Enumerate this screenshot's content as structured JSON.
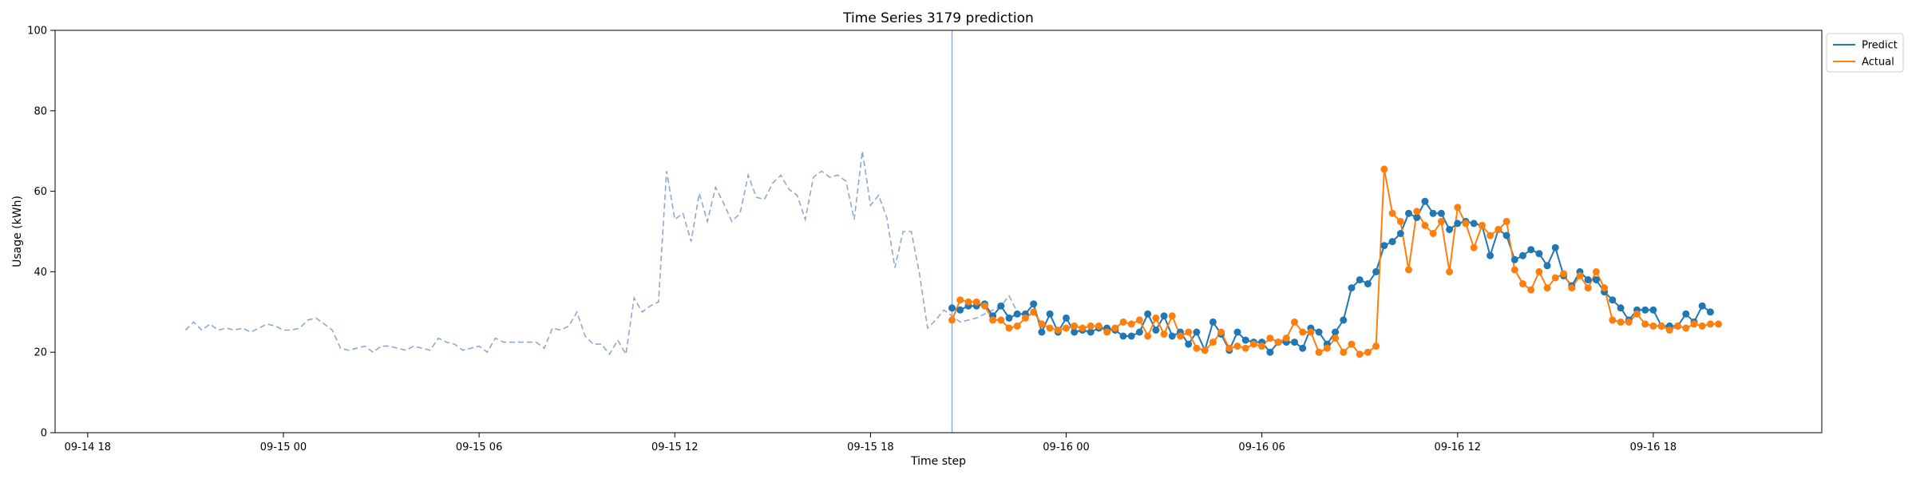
{
  "chart_data": {
    "type": "line",
    "title": "Time Series 3179 prediction",
    "xlabel": "Time step",
    "ylabel": "Usage (kWh)",
    "ylim": [
      0,
      100
    ],
    "yticks": [
      0,
      20,
      40,
      60,
      80,
      100
    ],
    "xlim": [
      "09-14 17:00",
      "09-16 23:10"
    ],
    "xticks": [
      "09-14 18",
      "09-15 00",
      "09-15 06",
      "09-15 12",
      "09-15 18",
      "09-16 00",
      "09-16 06",
      "09-16 12",
      "09-16 18"
    ],
    "grid": false,
    "legend_position": "top-right outside",
    "forecast_start": "09-15 20:30",
    "colors": {
      "history": "#8fa8d0",
      "predict": "#1f77b4",
      "actual": "#ff7f0e",
      "divider": "#8fa8d0"
    },
    "history": {
      "start": "09-14 21:00",
      "interval_minutes": 15,
      "values": [
        25.5,
        27.5,
        25.5,
        27,
        25.5,
        26,
        25.5,
        26,
        25,
        26,
        27,
        26.5,
        25.5,
        25.5,
        26,
        28,
        28.5,
        27,
        25.5,
        21,
        20.5,
        21,
        21.5,
        20,
        21.5,
        21.5,
        21,
        20.5,
        21.5,
        21,
        20.5,
        23.5,
        22.5,
        22,
        20.5,
        21,
        21.5,
        20,
        23.5,
        22.5,
        22.5,
        22.5,
        22.5,
        22.5,
        21,
        26,
        25.5,
        26.5,
        30,
        24,
        22,
        22,
        19.5,
        23,
        19.5,
        33.5,
        30,
        31.5,
        32.5,
        65,
        53,
        54.5,
        47.5,
        59.5,
        52.5,
        61,
        57,
        52.5,
        54.5,
        64,
        58.5,
        58,
        62,
        64,
        60.5,
        59,
        53,
        63.5,
        65,
        63.5,
        64,
        62.5,
        53,
        70,
        56.5,
        59,
        53.5,
        41,
        50,
        50,
        39.5,
        26,
        28,
        30.5,
        29,
        27.5,
        28,
        28.5,
        29.5,
        30.5,
        31.5,
        34,
        30
      ]
    },
    "forecast_x": {
      "start": "09-15 20:30",
      "interval_minutes": 15
    },
    "series": [
      {
        "name": "Predict",
        "values": [
          31,
          30.5,
          31.5,
          31.5,
          32,
          29,
          31.5,
          28.5,
          29.5,
          29.5,
          32,
          25,
          29.5,
          25,
          28.5,
          25,
          25.5,
          25,
          26,
          26,
          25.5,
          24,
          24,
          25,
          29.5,
          25.5,
          29,
          24,
          25,
          22,
          25,
          20.5,
          27.5,
          24.5,
          20.5,
          25,
          23,
          22.5,
          22.5,
          20,
          22.5,
          22.5,
          22.5,
          21,
          26,
          25,
          22,
          25,
          28,
          36,
          38,
          37,
          40,
          46.5,
          47.5,
          49.5,
          54.5,
          53.5,
          57.5,
          54.5,
          54.5,
          50.5,
          52,
          52.5,
          52,
          51.5,
          44,
          50.5,
          49,
          43,
          44,
          45.5,
          44.5,
          41.5,
          46,
          39,
          36.5,
          40,
          38,
          38,
          35,
          33,
          31,
          28,
          30.5,
          30.5,
          30.5,
          26.5,
          26.5,
          26.5,
          29.5,
          27.5,
          31.5,
          30
        ]
      },
      {
        "name": "Actual",
        "values": [
          28,
          33,
          32.5,
          32.5,
          31.5,
          28,
          28,
          26,
          26.5,
          28.5,
          30,
          27,
          26,
          25.5,
          26,
          26.5,
          26,
          26.5,
          26.5,
          25,
          26,
          27.5,
          27,
          28,
          24,
          28.5,
          24.5,
          29,
          24,
          25,
          21,
          20.5,
          22.5,
          25,
          21,
          21.5,
          21,
          22,
          21.5,
          23.5,
          22.5,
          23.5,
          27.5,
          25,
          25,
          20,
          21,
          23.5,
          20,
          22,
          19.5,
          20,
          21.5,
          65.5,
          54.5,
          52.5,
          40.5,
          55,
          51.5,
          49.5,
          52.5,
          40,
          56,
          52,
          46,
          51.5,
          49,
          50.5,
          52.5,
          40.5,
          37,
          35.5,
          40,
          36,
          38.5,
          39.5,
          36,
          39,
          36,
          40,
          36,
          28,
          27.5,
          27.5,
          29.5,
          27,
          26.5,
          26.5,
          25.5,
          26.5,
          26,
          27,
          26.5,
          27,
          27
        ]
      }
    ]
  }
}
